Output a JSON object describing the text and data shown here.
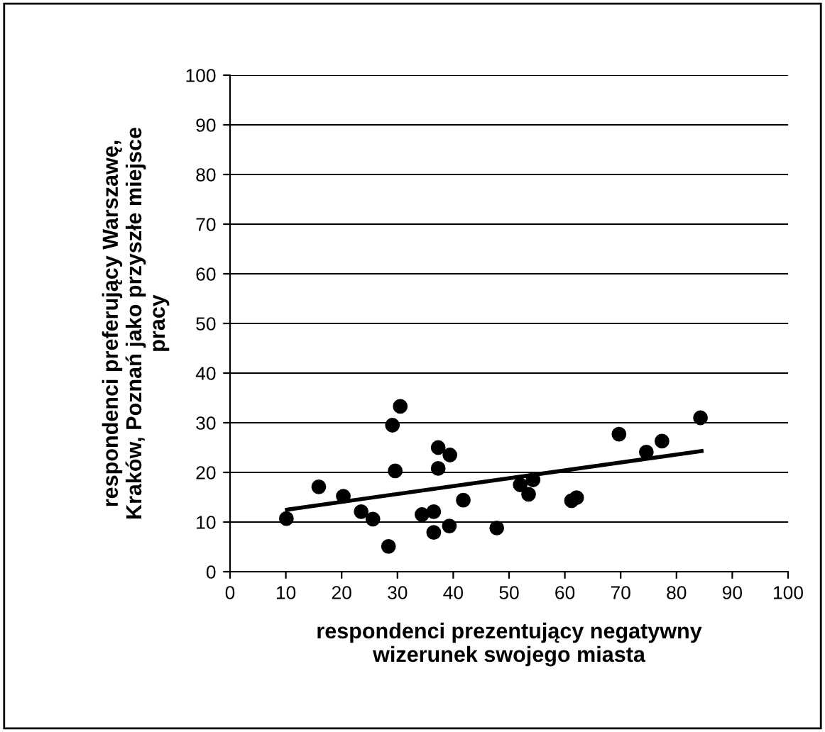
{
  "chart_data": {
    "type": "scatter",
    "xlabel": "respondenci prezentujący negatywny\nwizerunek swojego miasta",
    "ylabel": "respondenci preferujący Warszawę,\nKraków, Poznań jako przyszłe miejsce\npracy",
    "series": [
      {
        "color": "#000000",
        "marker": "circle",
        "x": [
          10.1,
          15.9,
          20.3,
          23.5,
          25.6,
          28.4,
          29.1,
          29.6,
          30.5,
          34.4,
          36.5,
          36.5,
          37.3,
          37.3,
          39.4,
          39.3,
          41.8,
          47.8,
          52.0,
          53.5,
          54.3,
          61.2,
          62.1,
          69.7,
          74.6,
          77.4,
          84.3
        ],
        "values": [
          10.7,
          17.1,
          15.2,
          12.1,
          10.6,
          5.1,
          29.5,
          20.3,
          33.3,
          11.5,
          12.1,
          7.9,
          25.0,
          20.8,
          23.5,
          9.2,
          14.4,
          8.8,
          17.5,
          15.6,
          18.5,
          14.3,
          14.9,
          27.7,
          24.1,
          26.3,
          31.0
        ]
      },
      {
        "type": "line",
        "color": "#000000",
        "x": [
          10.2,
          84.5
        ],
        "values": [
          12.5,
          24.3
        ]
      }
    ],
    "xlim": [
      0,
      100
    ],
    "ylim": [
      0,
      100
    ],
    "xticks": [
      0,
      10,
      20,
      30,
      40,
      50,
      60,
      70,
      80,
      90,
      100
    ],
    "yticks": [
      0,
      10,
      20,
      30,
      40,
      50,
      60,
      70,
      80,
      90,
      100
    ],
    "grid": "y",
    "legend": false
  }
}
